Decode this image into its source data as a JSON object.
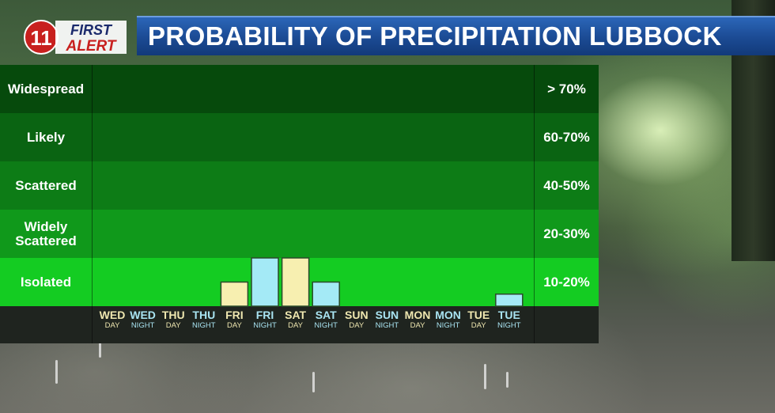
{
  "logo": {
    "number": "11",
    "line1": "FIRST",
    "line2": "ALERT"
  },
  "title": "PROBABILITY OF PRECIPITATION LUBBOCK",
  "colors": {
    "day_bar": "#f7efb0",
    "night_bar": "#a4eaf6",
    "title_bar": "#1b4a93"
  },
  "chart_data": {
    "type": "bar",
    "title": "PROBABILITY OF PRECIPITATION LUBBOCK",
    "y_levels": [
      {
        "label": "Widespread",
        "range": "> 70%"
      },
      {
        "label": "Likely",
        "range": "60-70%"
      },
      {
        "label": "Scattered",
        "range": "40-50%"
      },
      {
        "label": "Widely Scattered",
        "range": "20-30%"
      },
      {
        "label": "Isolated",
        "range": "10-20%"
      }
    ],
    "categories": [
      {
        "day": "WED",
        "period": "DAY",
        "kind": "day"
      },
      {
        "day": "WED",
        "period": "NIGHT",
        "kind": "night"
      },
      {
        "day": "THU",
        "period": "DAY",
        "kind": "day"
      },
      {
        "day": "THU",
        "period": "NIGHT",
        "kind": "night"
      },
      {
        "day": "FRI",
        "period": "DAY",
        "kind": "day"
      },
      {
        "day": "FRI",
        "period": "NIGHT",
        "kind": "night"
      },
      {
        "day": "SAT",
        "period": "DAY",
        "kind": "day"
      },
      {
        "day": "SAT",
        "period": "NIGHT",
        "kind": "night"
      },
      {
        "day": "SUN",
        "period": "DAY",
        "kind": "day"
      },
      {
        "day": "SUN",
        "period": "NIGHT",
        "kind": "night"
      },
      {
        "day": "MON",
        "period": "DAY",
        "kind": "day"
      },
      {
        "day": "MON",
        "period": "NIGHT",
        "kind": "night"
      },
      {
        "day": "TUE",
        "period": "DAY",
        "kind": "day"
      },
      {
        "day": "TUE",
        "period": "NIGHT",
        "kind": "night"
      }
    ],
    "values": [
      0,
      0,
      0,
      0,
      10,
      20,
      20,
      10,
      0,
      0,
      0,
      0,
      0,
      5
    ],
    "ylim": [
      0,
      100
    ]
  }
}
